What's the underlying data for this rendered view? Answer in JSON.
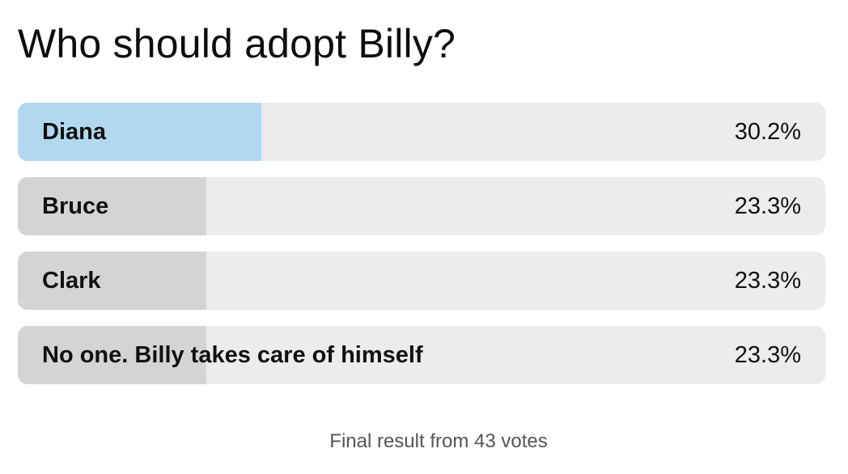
{
  "poll": {
    "title": "Who should adopt Billy?",
    "options": [
      {
        "label": "Diana",
        "percent_text": "30.2%",
        "share": 0.302,
        "winner": true
      },
      {
        "label": "Bruce",
        "percent_text": "23.3%",
        "share": 0.233,
        "winner": false
      },
      {
        "label": "Clark",
        "percent_text": "23.3%",
        "share": 0.233,
        "winner": false
      },
      {
        "label": "No one. Billy takes care of himself",
        "percent_text": "23.3%",
        "share": 0.233,
        "winner": false
      }
    ],
    "footer": "Final result from 43 votes"
  },
  "colors": {
    "winner_fill": "#b1d8f0",
    "option_fill": "#d4d4d4",
    "track": "#ececec"
  }
}
